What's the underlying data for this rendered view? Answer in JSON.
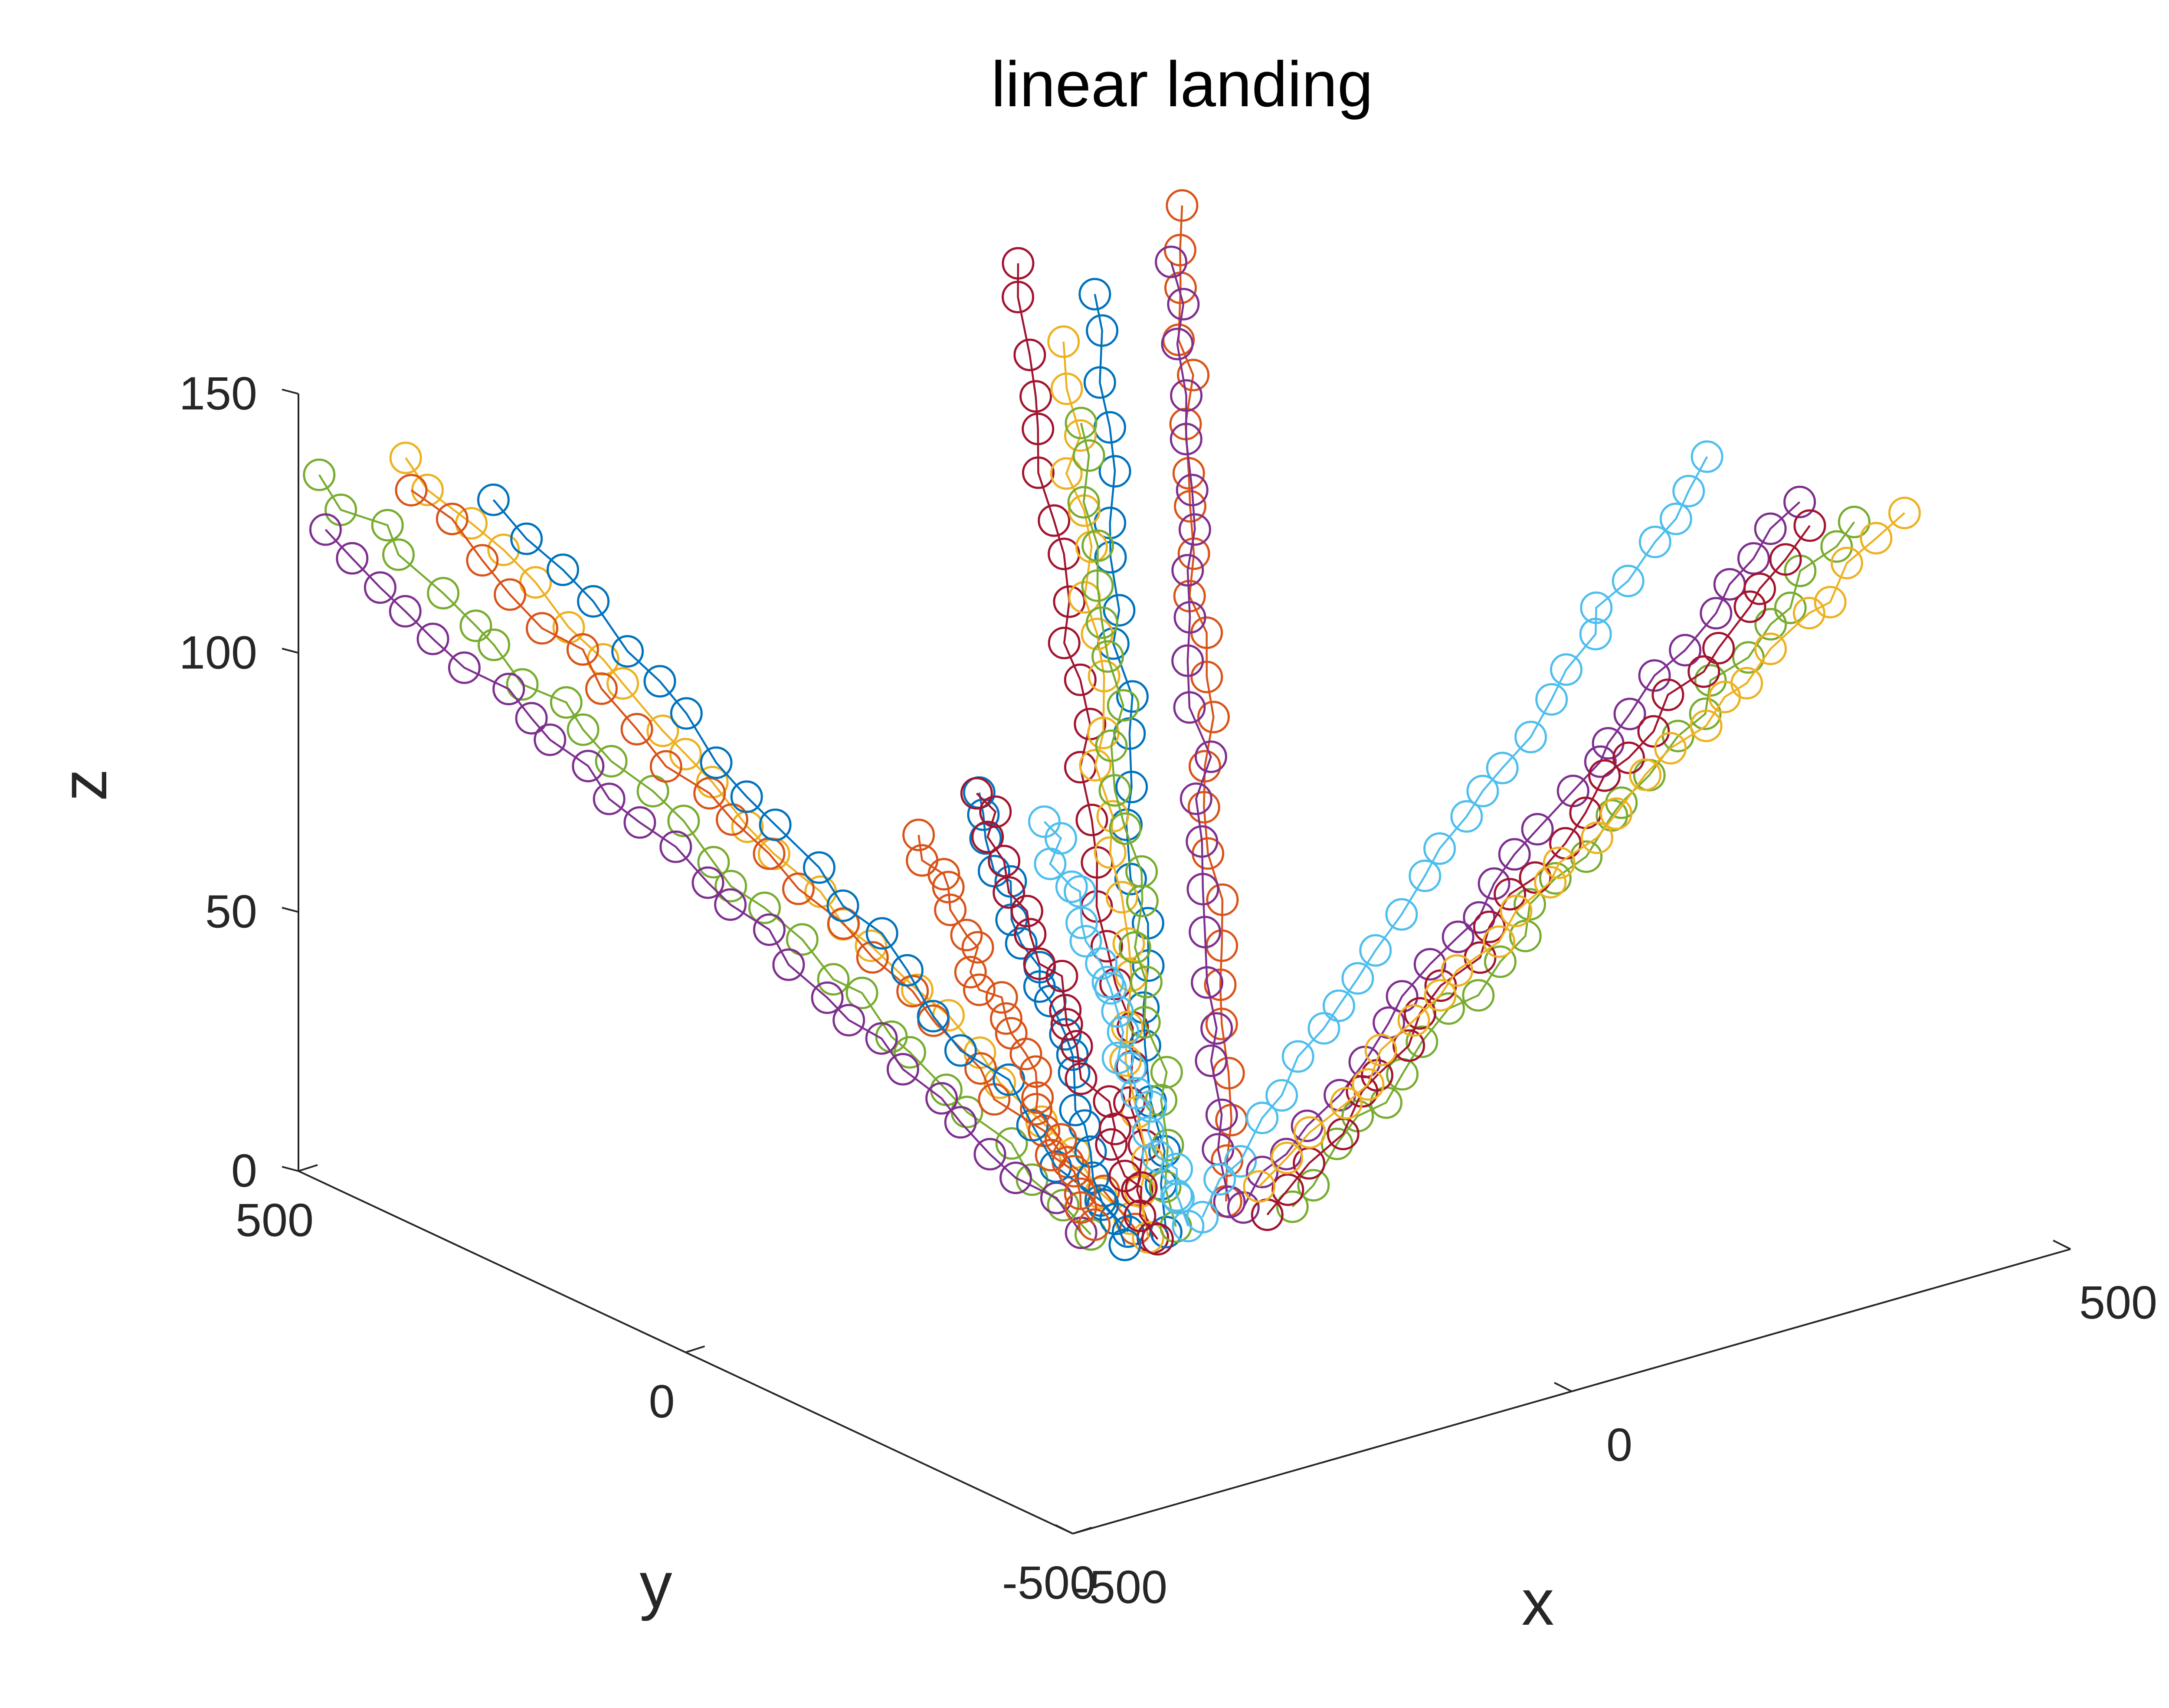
{
  "chart_data": {
    "type": "line3d",
    "title": "linear landing",
    "xlabel": "x",
    "ylabel": "y",
    "zlabel": "z",
    "xlim": [
      -500,
      500
    ],
    "ylim": [
      -500,
      500
    ],
    "zlim": [
      0,
      150
    ],
    "x_ticks": [
      -500,
      0,
      500
    ],
    "y_ticks": [
      -500,
      0,
      500
    ],
    "z_ticks": [
      0,
      50,
      100,
      150
    ],
    "marker": "circle",
    "grid": false,
    "series": [
      {
        "color": "#77AC30",
        "start": [
          -489.4,
          486.9,
          134.7
        ],
        "end": [
          -90.8,
          4.0,
          0.0
        ],
        "points": 27
      },
      {
        "color": "#7E2F8E",
        "start": [
          -491.4,
          476.1,
          125.0
        ],
        "end": [
          -94.7,
          11.5,
          0.0
        ],
        "points": 27
      },
      {
        "color": "#EDB120",
        "start": [
          -393.0,
          499.4,
          131.8
        ],
        "end": [
          -45.5,
          12.2,
          0.0
        ],
        "points": 24
      },
      {
        "color": "#D95319",
        "start": [
          -403.5,
          478.7,
          127.6
        ],
        "end": [
          -55.8,
          -8.4,
          0.0
        ],
        "points": 23
      },
      {
        "color": "#0072BD",
        "start": [
          -342.4,
          451.3,
          124.3
        ],
        "end": [
          -63.8,
          -9.3,
          0.0
        ],
        "points": 21
      },
      {
        "color": "#A2142F",
        "start": [
          -72.5,
          121.5,
          178.2
        ],
        "end": [
          -56.2,
          -31.6,
          0.0
        ],
        "points": 24
      },
      {
        "color": "#0072BD",
        "start": [
          -36.1,
          69.3,
          173.9
        ],
        "end": [
          -40.7,
          -28.8,
          0.0
        ],
        "points": 22
      },
      {
        "color": "#EDB120",
        "start": [
          -59.5,
          79.5,
          165.3
        ],
        "end": [
          -58.9,
          -29.0,
          0.0
        ],
        "points": 22
      },
      {
        "color": "#77AC30",
        "start": [
          -51.4,
          67.4,
          150.0
        ],
        "end": [
          -27.4,
          -24.1,
          0.0
        ],
        "points": 21
      },
      {
        "color": "#D95319",
        "start": [
          103.1,
          136.0,
          178.7
        ],
        "end": [
          37.5,
          -5.4,
          0.0
        ],
        "points": 24
      },
      {
        "color": "#7E2F8E",
        "start": [
          95.0,
          139.7,
          168.0
        ],
        "end": [
          38.8,
          -8.0,
          0.0
        ],
        "points": 22
      },
      {
        "color": "#0072BD",
        "start": [
          -143.2,
          80.6,
          82.8
        ],
        "end": [
          -83.5,
          -30.5,
          0.0
        ],
        "points": 20
      },
      {
        "color": "#A2142F",
        "start": [
          -138.9,
          89.5,
          81.8
        ],
        "end": [
          -55.5,
          -36.8,
          0.0
        ],
        "points": 20
      },
      {
        "color": "#D95319",
        "start": [
          -166.3,
          129.1,
          72.5
        ],
        "end": [
          -75.5,
          19.1,
          0.0
        ],
        "points": 22
      },
      {
        "color": "#4DBEEE",
        "start": [
          -67.6,
          93.9,
          72.1
        ],
        "end": [
          -19.0,
          -29.2,
          0.0
        ],
        "points": 22
      },
      {
        "color": "#4DBEEE",
        "start": [
          426.9,
          -124.8,
          130.7
        ],
        "end": [
          1.8,
          -20.9,
          0.0
        ],
        "points": 26
      },
      {
        "color": "#7E2F8E",
        "start": [
          467.7,
          -191.8,
          124.4
        ],
        "end": [
          40.1,
          -24.4,
          0.0
        ],
        "points": 25
      },
      {
        "color": "#77AC30",
        "start": [
          524.0,
          -189.7,
          117.3
        ],
        "end": [
          71.7,
          -47.0,
          0.0
        ],
        "points": 26
      },
      {
        "color": "#A2142F",
        "start": [
          491.5,
          -174.2,
          117.3
        ],
        "end": [
          45.4,
          -48.4,
          0.0
        ],
        "points": 25
      },
      {
        "color": "#EDB120",
        "start": [
          545.3,
          -227.3,
          120.5
        ],
        "end": [
          78.0,
          4.0,
          0.0
        ],
        "points": 26
      }
    ]
  }
}
